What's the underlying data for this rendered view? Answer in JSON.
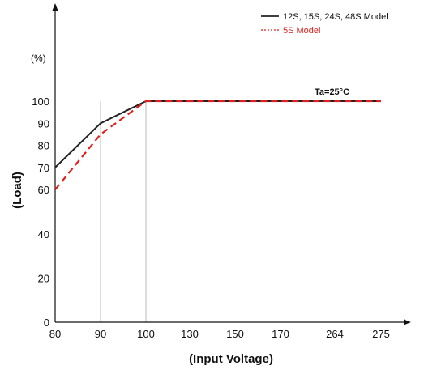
{
  "chart_data": {
    "type": "line",
    "xlabel": "(Input Voltage)",
    "ylabel": "(Load)",
    "y_unit": "(%)",
    "x_ticks": [
      "80",
      "90",
      "100",
      "130",
      "150",
      "170",
      "264",
      "275"
    ],
    "y_ticks": [
      0,
      20,
      40,
      60,
      70,
      80,
      90,
      100
    ],
    "ylim": [
      0,
      100
    ],
    "grid_verticals_at": [
      "90",
      "100"
    ],
    "annotation": "Ta=25°C",
    "legend_position": "top-right",
    "series": [
      {
        "name": "12S, 15S, 24S, 48S Model",
        "color": "#222222",
        "style": "solid",
        "points": [
          [
            "80",
            70
          ],
          [
            "90",
            90
          ],
          [
            "100",
            100
          ],
          [
            "275",
            100
          ]
        ]
      },
      {
        "name": "5S Model",
        "color": "#e02020",
        "style": "dashed",
        "points": [
          [
            "80",
            60
          ],
          [
            "90",
            85
          ],
          [
            "100",
            100
          ],
          [
            "275",
            100
          ]
        ]
      }
    ]
  }
}
